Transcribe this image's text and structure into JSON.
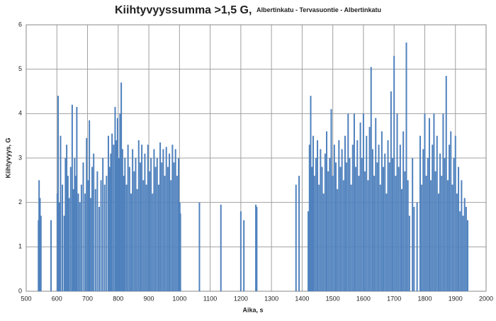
{
  "chart_data": {
    "type": "bar",
    "title": "Kiihtyvyyssumma >1,5 G,",
    "subtitle": "Albertinkatu - Tervasuontie - Albertinkatu",
    "x_label": "Aika, s",
    "y_label": "Kiihtyvyys, G",
    "color": "#4f81bd",
    "grid": true,
    "xlim": [
      500,
      2000
    ],
    "ylim": [
      0,
      6
    ],
    "xticks": [
      500,
      600,
      700,
      800,
      900,
      1000,
      1100,
      1200,
      1300,
      1400,
      1500,
      1600,
      1700,
      1800,
      1900,
      2000
    ],
    "yticks": [
      0,
      1,
      2,
      3,
      4,
      5,
      6
    ],
    "x": [
      540,
      542,
      545,
      548,
      581,
      602,
      604,
      608,
      612,
      618,
      624,
      628,
      632,
      636,
      640,
      645,
      650,
      654,
      658,
      662,
      665,
      670,
      675,
      680,
      686,
      692,
      697,
      702,
      706,
      710,
      715,
      720,
      726,
      732,
      738,
      744,
      750,
      756,
      762,
      768,
      772,
      776,
      780,
      785,
      790,
      794,
      798,
      802,
      806,
      810,
      814,
      818,
      822,
      827,
      832,
      837,
      842,
      847,
      852,
      857,
      862,
      867,
      872,
      877,
      882,
      887,
      892,
      897,
      902,
      907,
      912,
      917,
      922,
      927,
      932,
      937,
      942,
      947,
      952,
      957,
      962,
      967,
      972,
      977,
      982,
      987,
      992,
      997,
      1001,
      1003,
      1065,
      1135,
      1200,
      1210,
      1249,
      1252,
      1380,
      1390,
      1420,
      1424,
      1428,
      1432,
      1436,
      1440,
      1445,
      1450,
      1455,
      1460,
      1465,
      1470,
      1475,
      1480,
      1485,
      1490,
      1495,
      1500,
      1505,
      1510,
      1515,
      1520,
      1525,
      1530,
      1535,
      1540,
      1545,
      1550,
      1555,
      1560,
      1565,
      1570,
      1575,
      1580,
      1585,
      1590,
      1595,
      1600,
      1605,
      1610,
      1615,
      1620,
      1625,
      1630,
      1635,
      1640,
      1645,
      1650,
      1655,
      1660,
      1665,
      1670,
      1675,
      1680,
      1685,
      1690,
      1695,
      1700,
      1705,
      1710,
      1715,
      1720,
      1725,
      1730,
      1735,
      1740,
      1745,
      1750,
      1760,
      1765,
      1775,
      1785,
      1790,
      1795,
      1800,
      1805,
      1810,
      1815,
      1820,
      1825,
      1830,
      1835,
      1840,
      1845,
      1850,
      1855,
      1860,
      1865,
      1870,
      1875,
      1880,
      1885,
      1890,
      1895,
      1900,
      1905,
      1910,
      1915,
      1920,
      1925,
      1930,
      1935,
      1940
    ],
    "values": [
      1.6,
      2.5,
      2.1,
      1.7,
      1.6,
      2.2,
      4.4,
      2.0,
      3.5,
      2.4,
      1.7,
      3.0,
      3.3,
      2.6,
      2.1,
      2.8,
      4.2,
      2.3,
      3.0,
      2.6,
      4.15,
      2.2,
      2.0,
      2.4,
      2.9,
      2.2,
      3.45,
      2.5,
      3.85,
      2.1,
      2.8,
      3.1,
      2.3,
      2.7,
      1.9,
      2.5,
      3.0,
      2.4,
      2.6,
      3.5,
      2.8,
      3.1,
      3.55,
      3.3,
      4.15,
      3.4,
      3.9,
      3.0,
      4.0,
      4.7,
      3.2,
      2.6,
      3.0,
      2.4,
      3.3,
      2.8,
      2.2,
      3.2,
      2.7,
      3.0,
      2.3,
      3.4,
      2.9,
      3.3,
      2.5,
      3.1,
      2.4,
      3.3,
      2.7,
      3.0,
      2.2,
      3.2,
      2.8,
      3.0,
      2.4,
      3.35,
      2.9,
      3.2,
      2.6,
      3.25,
      2.8,
      3.1,
      2.5,
      3.3,
      2.9,
      3.2,
      2.6,
      3.0,
      2.0,
      1.75,
      2.0,
      1.95,
      1.8,
      1.6,
      1.95,
      1.9,
      2.4,
      2.6,
      1.8,
      3.3,
      4.4,
      2.8,
      3.5,
      2.6,
      3.0,
      3.4,
      2.4,
      3.2,
      2.8,
      2.2,
      3.1,
      3.6,
      2.7,
      3.0,
      4.1,
      2.6,
      3.3,
      2.9,
      2.3,
      3.4,
      2.8,
      3.2,
      2.5,
      3.5,
      2.9,
      4.0,
      3.0,
      2.4,
      3.3,
      4.0,
      2.8,
      3.4,
      2.6,
      3.8,
      3.0,
      4.0,
      2.7,
      3.5,
      2.5,
      3.7,
      5.05,
      3.2,
      2.6,
      3.9,
      2.9,
      3.3,
      2.4,
      3.6,
      2.8,
      3.1,
      2.2,
      3.4,
      2.9,
      4.5,
      3.0,
      5.3,
      2.6,
      4.0,
      2.8,
      3.3,
      2.3,
      3.6,
      2.7,
      5.6,
      2.5,
      1.7,
      3.0,
      1.9,
      2.0,
      3.5,
      2.4,
      3.2,
      4.0,
      2.6,
      3.0,
      3.9,
      2.5,
      3.3,
      4.0,
      2.7,
      3.5,
      2.2,
      3.1,
      2.6,
      4.0,
      3.0,
      4.85,
      2.5,
      3.3,
      3.6,
      2.4,
      3.0,
      3.5,
      2.2,
      2.8,
      1.8,
      2.5,
      1.7,
      2.1,
      1.9,
      1.6
    ]
  }
}
